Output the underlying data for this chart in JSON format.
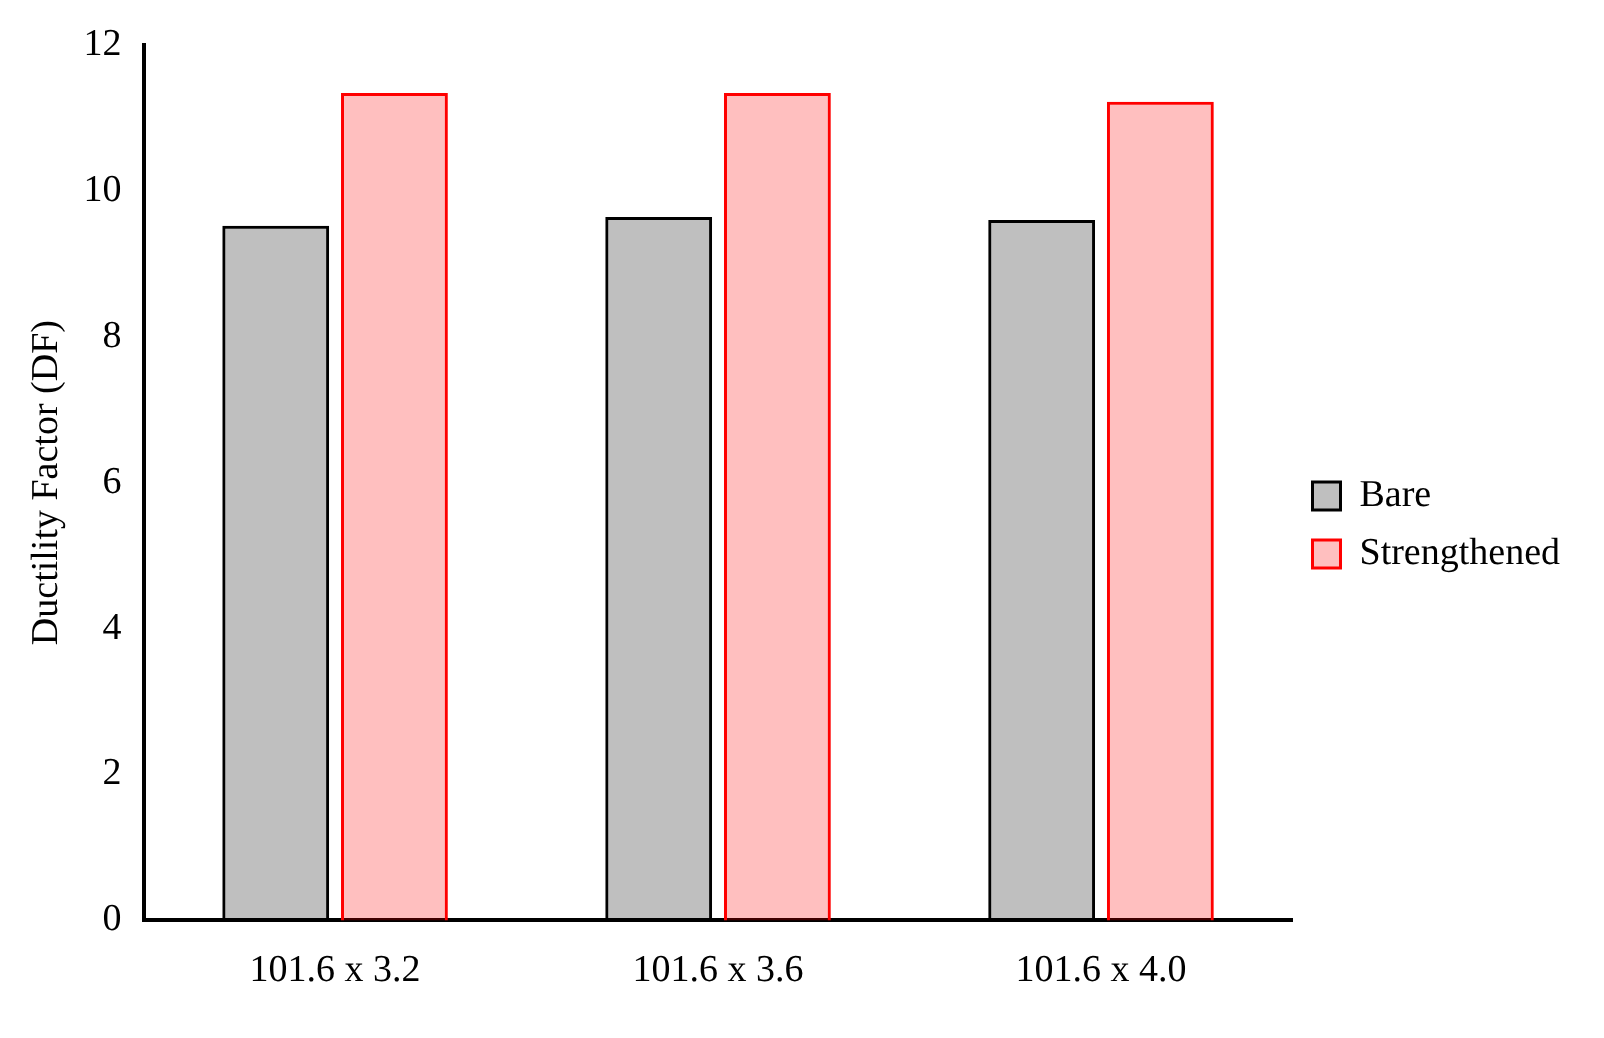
{
  "chart_data": {
    "type": "bar",
    "ylabel": "Ductility Factor (DF)",
    "categories": [
      "101.6 x 3.2",
      "101.6 x 3.6",
      "101.6 x 4.0"
    ],
    "series": [
      {
        "name": "Bare",
        "color": "#000000",
        "values": [
          9.52,
          9.64,
          9.6
        ]
      },
      {
        "name": "Strengthened",
        "color": "#ff0000",
        "values": [
          11.34,
          11.34,
          11.22
        ]
      }
    ],
    "ylim": [
      0,
      12
    ],
    "yticks": [
      0,
      2,
      4,
      6,
      8,
      10,
      12
    ],
    "grid": false,
    "legend": "right"
  }
}
